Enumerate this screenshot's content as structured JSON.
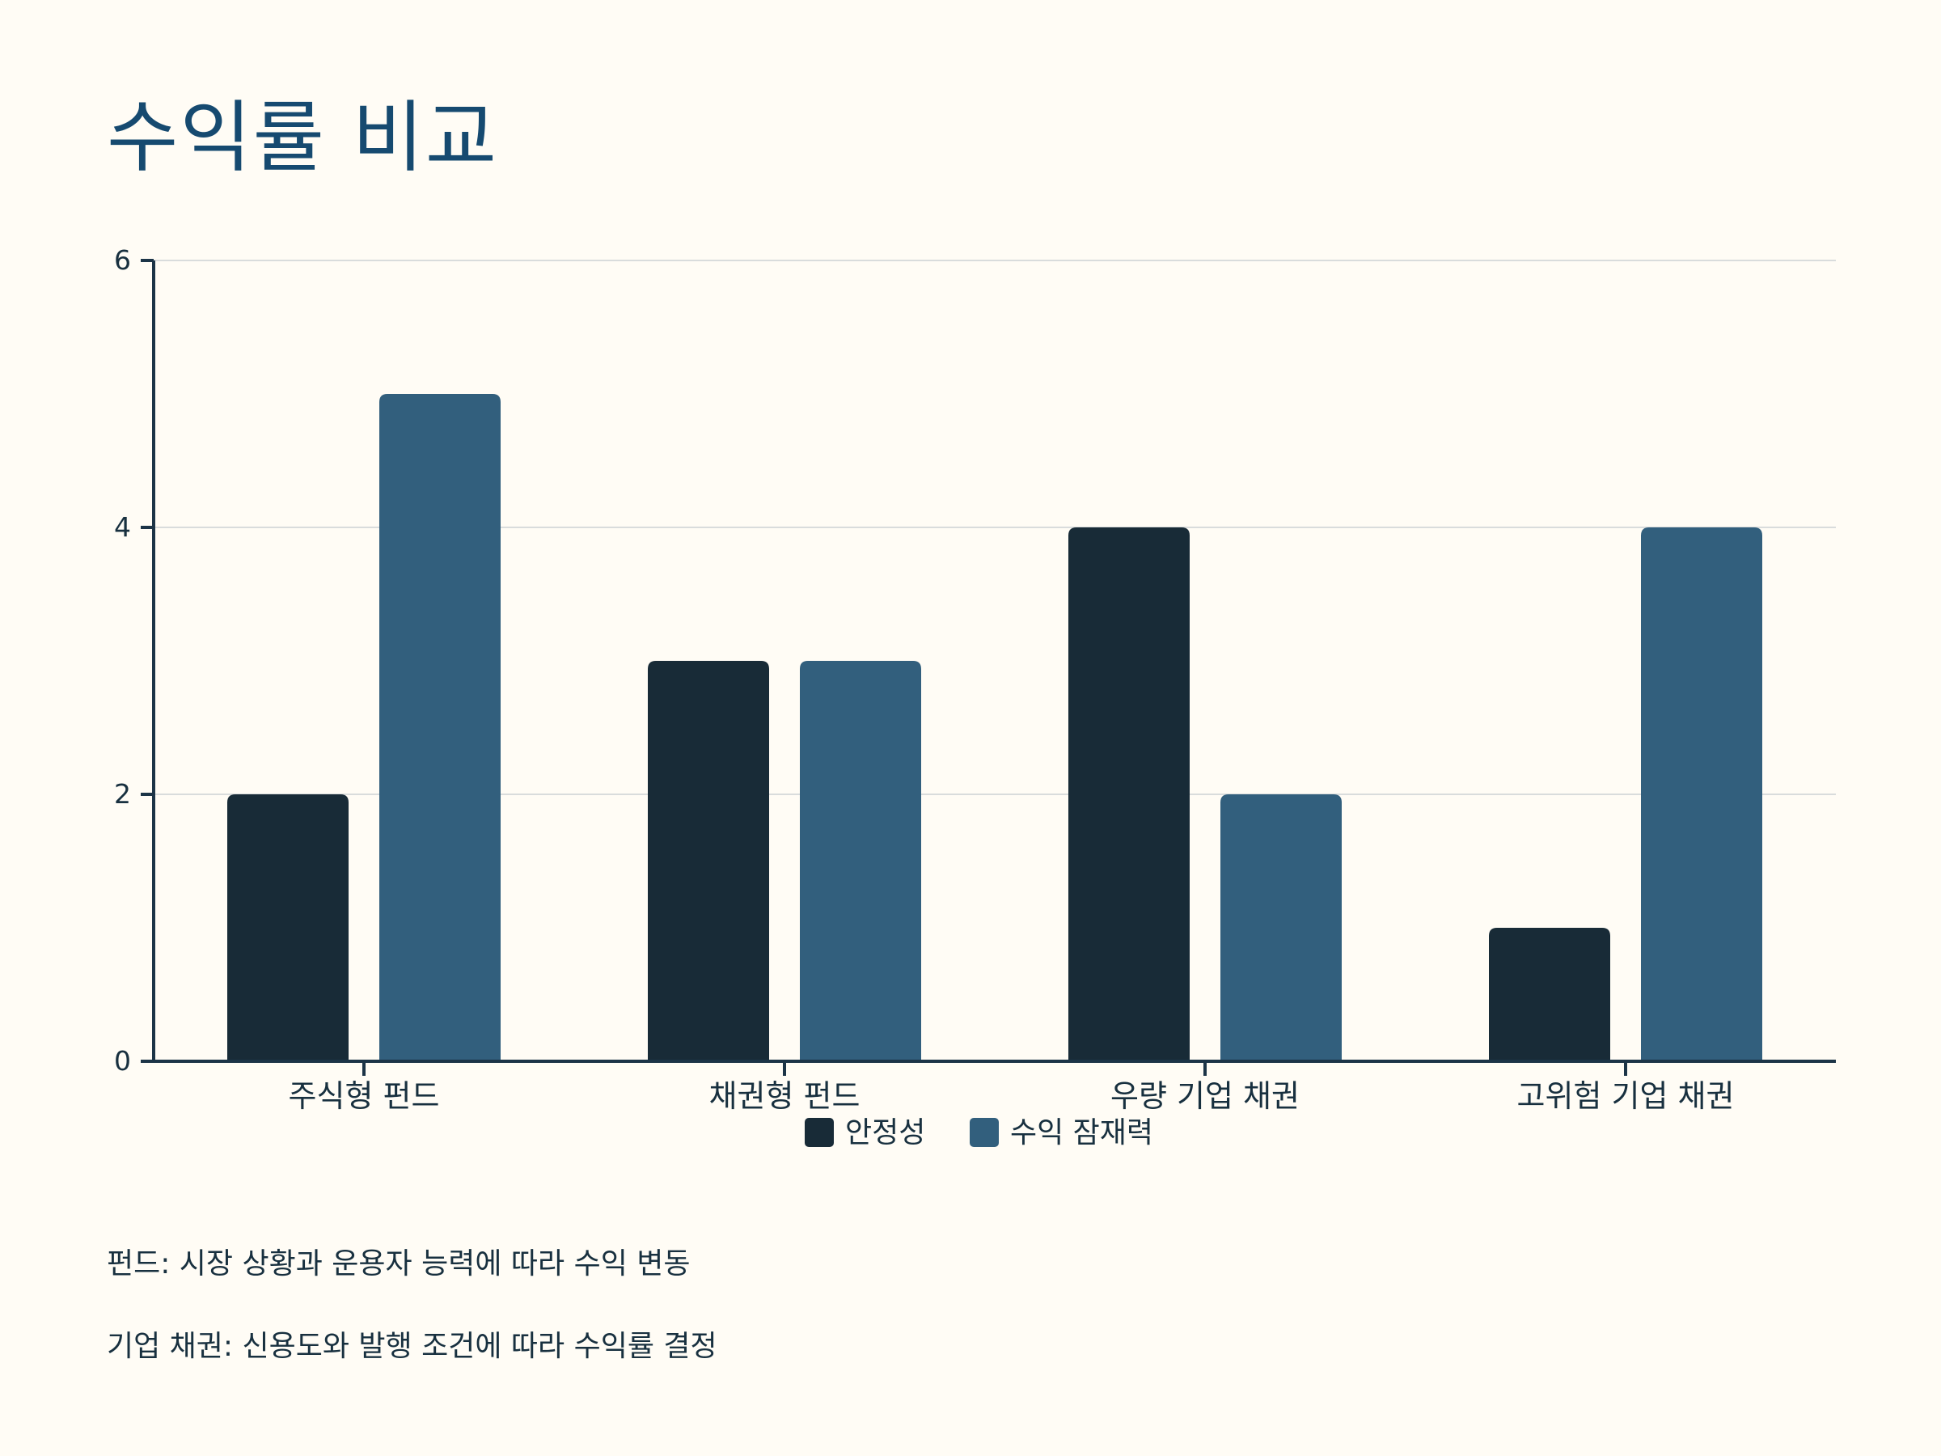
{
  "title": "수익률 비교",
  "colors": {
    "background": "#fffcf5",
    "title": "#164a70",
    "axis": "#1c3447",
    "grid": "#d9dcdc"
  },
  "chart_data": {
    "type": "bar",
    "title": "수익률 비교",
    "categories": [
      "주식형 펀드",
      "채권형 펀드",
      "우량 기업 채권",
      "고위험 기업 채권"
    ],
    "series": [
      {
        "name": "안정성",
        "values": [
          2,
          3,
          4,
          1
        ],
        "color": "#182b37"
      },
      {
        "name": "수익 잠재력",
        "values": [
          5,
          3,
          2,
          4
        ],
        "color": "#325f7d"
      }
    ],
    "ylim": [
      0,
      6
    ],
    "yticks": [
      0,
      2,
      4,
      6
    ],
    "grid": true,
    "legend_position": "bottom-center"
  },
  "notes": [
    "펀드: 시장 상황과 운용자 능력에 따라 수익 변동",
    "기업 채권: 신용도와 발행 조건에 따라 수익률 결정"
  ]
}
